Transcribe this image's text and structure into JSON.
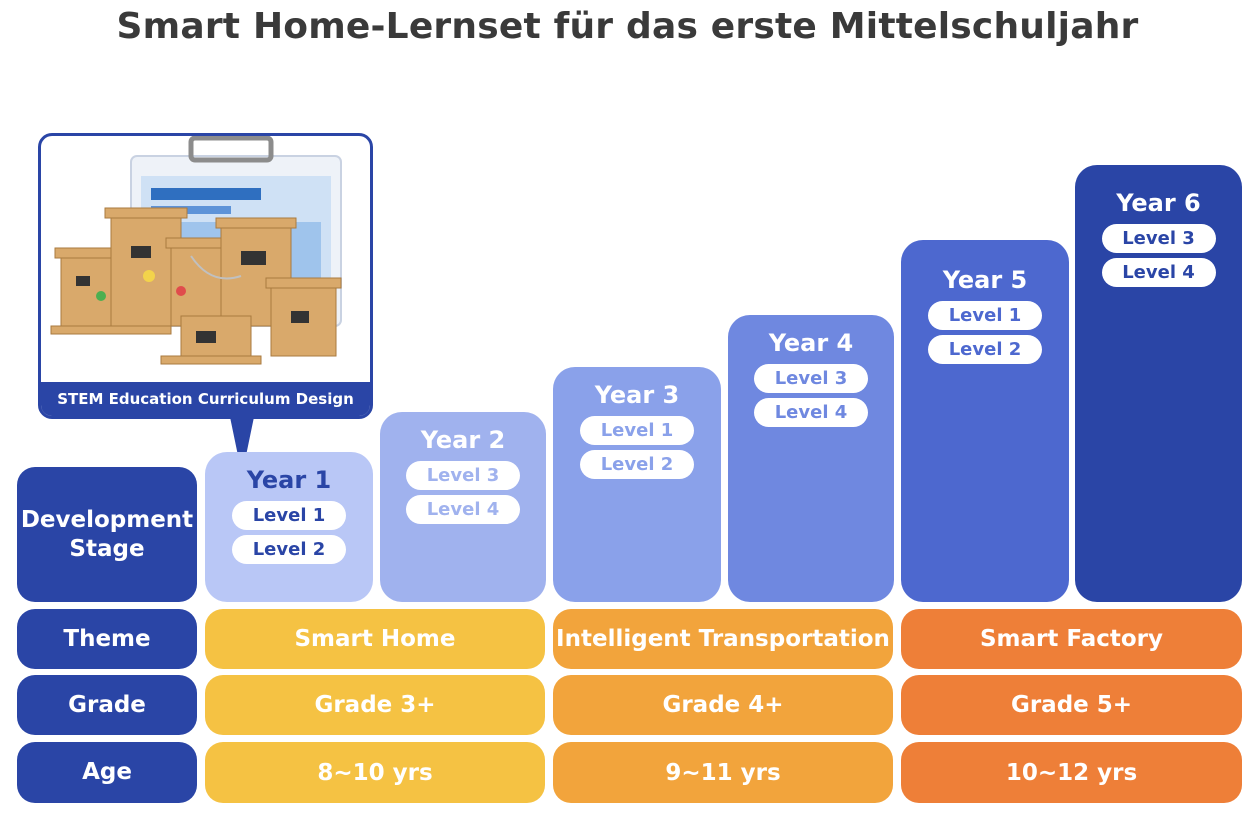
{
  "title": "Smart Home-Lernset für das erste Mittelschuljahr",
  "caption": "STEM Education Curriculum Design",
  "row_labels": {
    "stage": "Development Stage",
    "theme": "Theme",
    "grade": "Grade",
    "age": "Age"
  },
  "stages": [
    {
      "year": "Year 1",
      "levels": [
        "Level 1",
        "Level 2"
      ],
      "color": "#b9c7f6",
      "text_color": "#2a45a6"
    },
    {
      "year": "Year 2",
      "levels": [
        "Level 3",
        "Level 4"
      ],
      "color": "#a0b2ee",
      "text_color": "#a0b2ee"
    },
    {
      "year": "Year 3",
      "levels": [
        "Level 1",
        "Level 2"
      ],
      "color": "#8aa1ea",
      "text_color": "#8aa1ea"
    },
    {
      "year": "Year 4",
      "levels": [
        "Level 3",
        "Level 4"
      ],
      "color": "#6f88e0",
      "text_color": "#6f88e0"
    },
    {
      "year": "Year 5",
      "levels": [
        "Level 1",
        "Level 2"
      ],
      "color": "#4d68cf",
      "text_color": "#4d68cf"
    },
    {
      "year": "Year 6",
      "levels": [
        "Level 3",
        "Level 4"
      ],
      "color": "#2a45a6",
      "text_color": "#2a45a6"
    }
  ],
  "groups": [
    {
      "theme": "Smart Home",
      "grade": "Grade 3+",
      "age": "8~10 yrs",
      "color": "#f5c243"
    },
    {
      "theme": "Intelligent Transportation",
      "grade": "Grade 4+",
      "age": "9~11 yrs",
      "color": "#f2a43c"
    },
    {
      "theme": "Smart Factory",
      "grade": "Grade 5+",
      "age": "10~12 yrs",
      "color": "#ee7f38"
    }
  ]
}
